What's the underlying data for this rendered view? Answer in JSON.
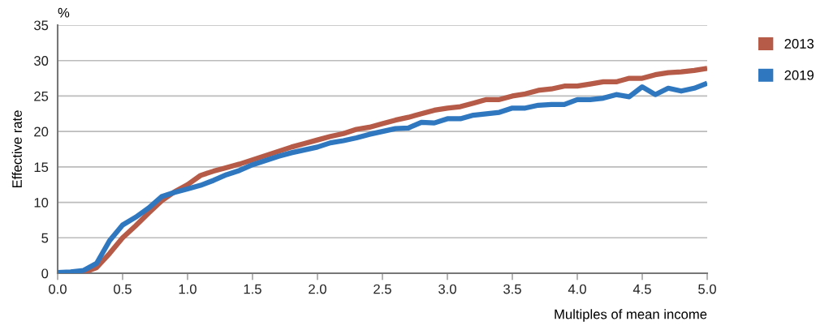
{
  "chart_data": {
    "type": "line",
    "x": [
      0,
      0.1,
      0.2,
      0.3,
      0.4,
      0.5,
      0.6,
      0.7,
      0.8,
      0.9,
      1.0,
      1.1,
      1.2,
      1.3,
      1.4,
      1.5,
      1.6,
      1.7,
      1.8,
      1.9,
      2.0,
      2.1,
      2.2,
      2.3,
      2.4,
      2.5,
      2.6,
      2.7,
      2.8,
      2.9,
      3.0,
      3.1,
      3.2,
      3.3,
      3.4,
      3.5,
      3.6,
      3.7,
      3.8,
      3.9,
      4.0,
      4.1,
      4.2,
      4.3,
      4.4,
      4.5,
      4.6,
      4.7,
      4.8,
      4.9,
      5.0
    ],
    "series": [
      {
        "name": "2013",
        "color": "#b65b48",
        "values": [
          0,
          0,
          0.1,
          0.8,
          2.8,
          5.0,
          6.7,
          8.5,
          10.2,
          11.5,
          12.5,
          13.8,
          14.4,
          14.9,
          15.4,
          16.0,
          16.6,
          17.2,
          17.8,
          18.3,
          18.8,
          19.3,
          19.7,
          20.3,
          20.6,
          21.1,
          21.6,
          22.0,
          22.5,
          23.0,
          23.3,
          23.5,
          24.0,
          24.5,
          24.5,
          25.0,
          25.3,
          25.8,
          26.0,
          26.4,
          26.4,
          26.7,
          27.0,
          27.0,
          27.5,
          27.5,
          28.0,
          28.3,
          28.4,
          28.6,
          28.9
        ]
      },
      {
        "name": "2019",
        "color": "#2f78c0",
        "values": [
          0.1,
          0.2,
          0.4,
          1.4,
          4.6,
          6.8,
          7.9,
          9.2,
          10.8,
          11.4,
          11.9,
          12.4,
          13.1,
          13.9,
          14.5,
          15.3,
          15.9,
          16.5,
          17.0,
          17.4,
          17.8,
          18.4,
          18.7,
          19.1,
          19.6,
          20.0,
          20.4,
          20.5,
          21.3,
          21.2,
          21.8,
          21.8,
          22.3,
          22.5,
          22.7,
          23.3,
          23.3,
          23.7,
          23.8,
          23.8,
          24.5,
          24.5,
          24.7,
          25.2,
          24.9,
          26.3,
          25.2,
          26.1,
          25.7,
          26.1,
          26.8
        ]
      }
    ],
    "xlabel": "Multiples of mean income",
    "ylabel": "Effective rate",
    "annotations": [
      "%"
    ],
    "xlim": [
      0,
      5
    ],
    "xticks": [
      {
        "value": 0,
        "label": "0.0"
      },
      {
        "value": 0.5,
        "label": "0.5"
      },
      {
        "value": 1,
        "label": "1.0"
      },
      {
        "value": 1.5,
        "label": "1.5"
      },
      {
        "value": 2,
        "label": "2.0"
      },
      {
        "value": 2.5,
        "label": "2.5"
      },
      {
        "value": 3,
        "label": "3.0"
      },
      {
        "value": 3.5,
        "label": "3.5"
      },
      {
        "value": 4,
        "label": "4.0"
      },
      {
        "value": 4.5,
        "label": "4.5"
      },
      {
        "value": 5,
        "label": "5.0"
      }
    ],
    "ylim": [
      0,
      35
    ],
    "yticks": [
      0,
      5,
      10,
      15,
      20,
      25,
      30,
      35
    ],
    "grid": "y",
    "legend": "top right",
    "marker": "none",
    "line_style": "solid"
  }
}
